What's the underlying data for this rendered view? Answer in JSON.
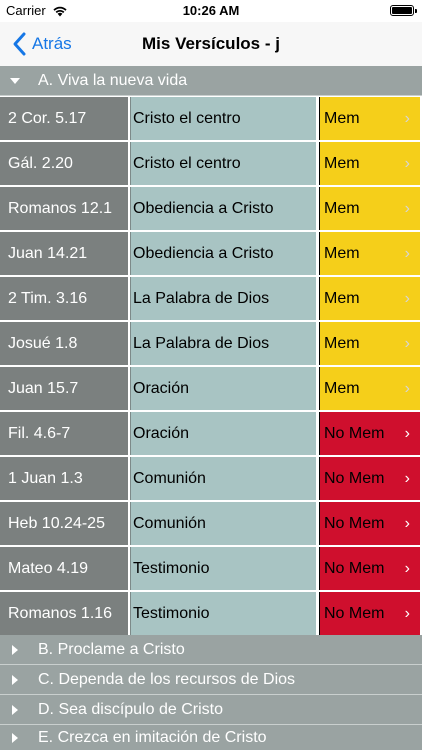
{
  "status_bar": {
    "carrier": "Carrier",
    "time": "10:26 AM"
  },
  "nav": {
    "back_label": "Atrás",
    "title": "Mis Versículos - j"
  },
  "sections": [
    {
      "label": "A. Viva la nueva vida",
      "expanded": true
    },
    {
      "label": "B. Proclame a Cristo",
      "expanded": false
    },
    {
      "label": "C. Dependa de los recursos de Dios",
      "expanded": false
    },
    {
      "label": "D. Sea discípulo de Cristo",
      "expanded": false
    },
    {
      "label": "E. Crezca en imitación de Cristo",
      "expanded": false
    }
  ],
  "rows": [
    {
      "ref": "2 Cor. 5.17",
      "topic": "Cristo el centro",
      "status": "Mem",
      "memorized": true
    },
    {
      "ref": "Gál. 2.20",
      "topic": "Cristo el centro",
      "status": "Mem",
      "memorized": true
    },
    {
      "ref": "Romanos 12.1",
      "topic": "Obediencia a Cristo",
      "status": "Mem",
      "memorized": true
    },
    {
      "ref": "Juan 14.21",
      "topic": "Obediencia a Cristo",
      "status": "Mem",
      "memorized": true
    },
    {
      "ref": "2 Tim. 3.16",
      "topic": "La Palabra de Dios",
      "status": "Mem",
      "memorized": true
    },
    {
      "ref": "Josué 1.8",
      "topic": "La Palabra de Dios",
      "status": "Mem",
      "memorized": true
    },
    {
      "ref": "Juan 15.7",
      "topic": "Oración",
      "status": "Mem",
      "memorized": true
    },
    {
      "ref": "Fil. 4.6-7",
      "topic": "Oración",
      "status": "No Mem",
      "memorized": false
    },
    {
      "ref": "1 Juan 1.3",
      "topic": "Comunión",
      "status": "No Mem",
      "memorized": false
    },
    {
      "ref": "Heb 10.24-25",
      "topic": "Comunión",
      "status": "No Mem",
      "memorized": false
    },
    {
      "ref": "Mateo 4.19",
      "topic": "Testimonio",
      "status": "No Mem",
      "memorized": false
    },
    {
      "ref": "Romanos 1.16",
      "topic": "Testimonio",
      "status": "No Mem",
      "memorized": false
    }
  ],
  "colors": {
    "mem": "#f5cf1a",
    "no_mem": "#cf0f2d",
    "ref_bg": "#7b807f",
    "topic_bg": "#a8c4c3",
    "header_bg": "#9aa3a2",
    "accent": "#1677e6"
  },
  "icons": {
    "back": "chevron-left-icon",
    "row_arrow": "chevron-right-icon",
    "expanded": "triangle-down-icon",
    "collapsed": "triangle-right-icon"
  }
}
